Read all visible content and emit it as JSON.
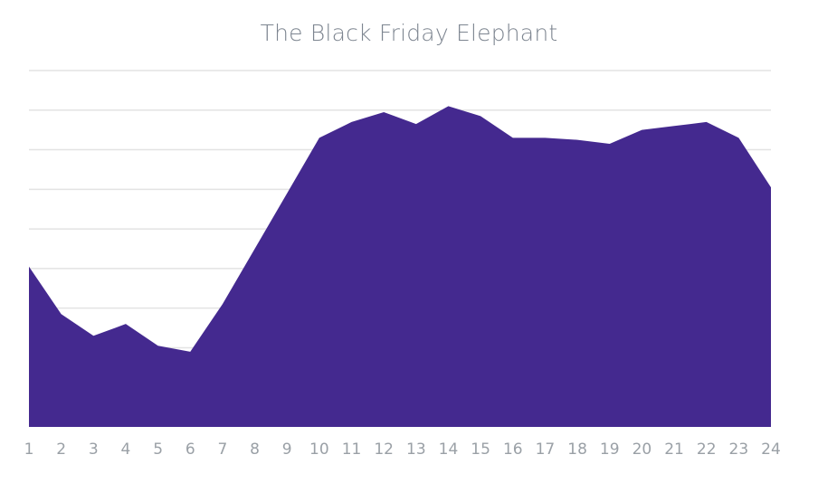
{
  "chart_data": {
    "type": "area",
    "title": "The Black Friday Elephant",
    "xlabel": "",
    "ylabel": "",
    "x": [
      "1",
      "2",
      "3",
      "4",
      "5",
      "6",
      "7",
      "8",
      "9",
      "10",
      "11",
      "12",
      "13",
      "14",
      "15",
      "16",
      "17",
      "18",
      "19",
      "20",
      "21",
      "22",
      "23",
      "24"
    ],
    "values": [
      40.5,
      28.5,
      23,
      26,
      20.5,
      19,
      31,
      45,
      59,
      73,
      77,
      79.5,
      76.5,
      81,
      78.5,
      73,
      73,
      72.5,
      71.5,
      75,
      76,
      77,
      73,
      60.5
    ],
    "ylim": [
      0,
      90
    ],
    "grid": true,
    "y_gridlines": 9,
    "y_axis_labels_shown": false,
    "legend": "none",
    "colors": {
      "area_fill": "#44298f",
      "grid": "#e3e3e3",
      "title": "#7d8590",
      "tick_label": "#9aa0a6"
    }
  }
}
